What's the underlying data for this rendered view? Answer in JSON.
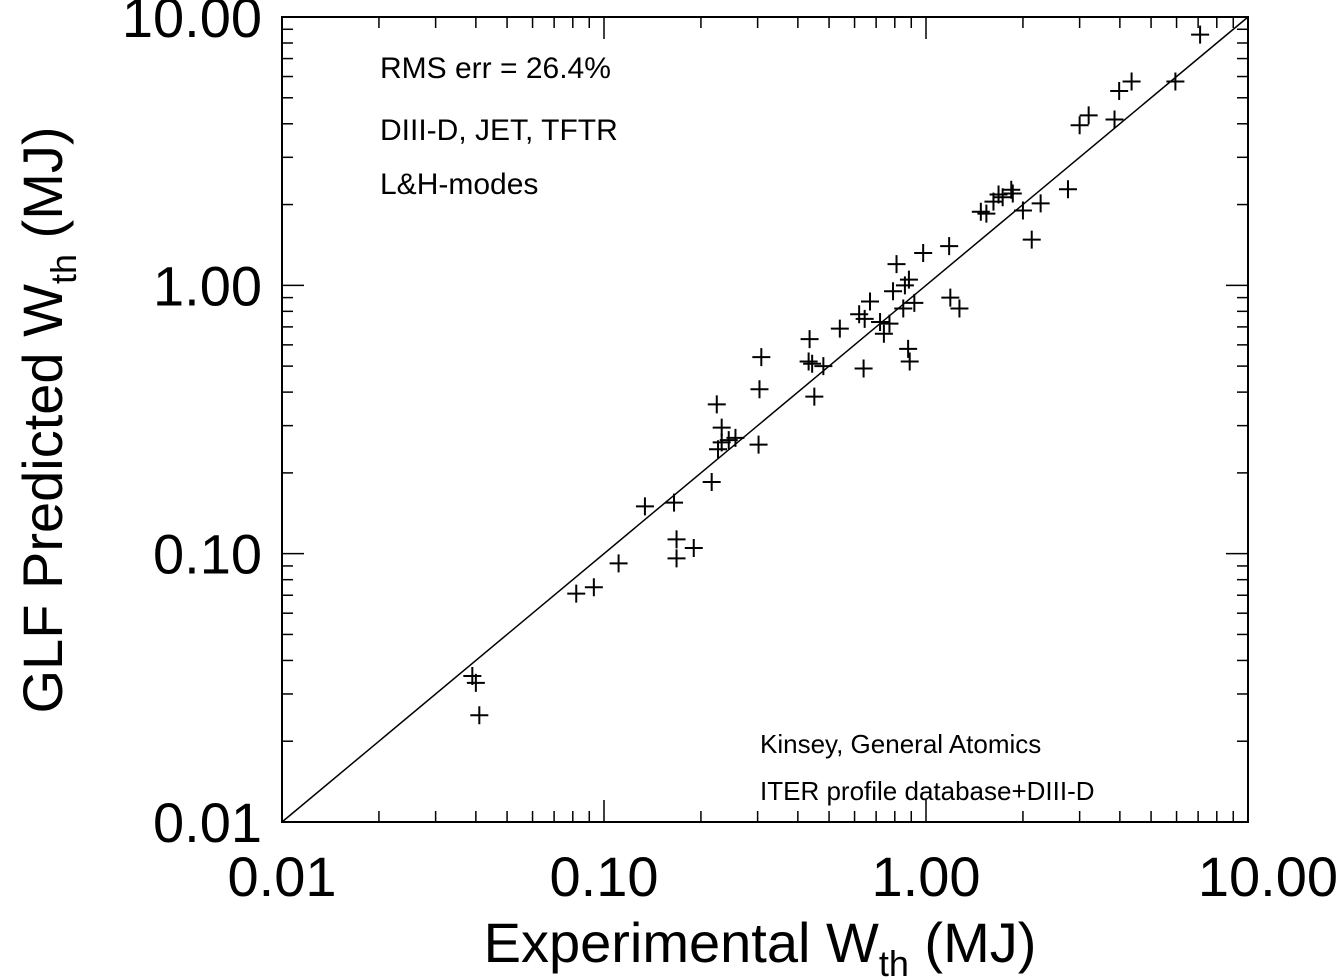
{
  "chart_data": {
    "type": "scatter",
    "title": "",
    "xlabel": {
      "main": "Experimental W",
      "sub": "th",
      "unit": " (MJ)"
    },
    "ylabel": {
      "main": "GLF Predicted W",
      "sub": "th",
      "unit": " (MJ)"
    },
    "x_scale": "log",
    "y_scale": "log",
    "xlim": [
      0.01,
      10
    ],
    "ylim": [
      0.01,
      10
    ],
    "x_ticks": [
      {
        "value": 0.01,
        "label": "0.01"
      },
      {
        "value": 0.1,
        "label": "0.10"
      },
      {
        "value": 1,
        "label": "1.00"
      },
      {
        "value": 10,
        "label": "10.00"
      }
    ],
    "y_ticks": [
      {
        "value": 0.01,
        "label": "0.01"
      },
      {
        "value": 0.1,
        "label": "0.10"
      },
      {
        "value": 1,
        "label": "1.00"
      },
      {
        "value": 10,
        "label": "10.00"
      }
    ],
    "grid": false,
    "reference_line": {
      "type": "identity",
      "from": [
        0.01,
        0.01
      ],
      "to": [
        10,
        10
      ]
    },
    "marker": "+",
    "annotations_top_left": [
      "RMS err = 26.4%",
      "DIII-D, JET, TFTR",
      "L&H-modes"
    ],
    "annotations_bottom_right": [
      "Kinsey, General Atomics",
      "ITER profile database+DIII-D"
    ],
    "points": [
      [
        0.039,
        0.035
      ],
      [
        0.04,
        0.033
      ],
      [
        0.041,
        0.025
      ],
      [
        0.082,
        0.071
      ],
      [
        0.093,
        0.075
      ],
      [
        0.111,
        0.092
      ],
      [
        0.134,
        0.15
      ],
      [
        0.165,
        0.155
      ],
      [
        0.168,
        0.113
      ],
      [
        0.168,
        0.096
      ],
      [
        0.19,
        0.105
      ],
      [
        0.216,
        0.185
      ],
      [
        0.224,
        0.36
      ],
      [
        0.226,
        0.245
      ],
      [
        0.232,
        0.295
      ],
      [
        0.232,
        0.26
      ],
      [
        0.244,
        0.265
      ],
      [
        0.256,
        0.27
      ],
      [
        0.302,
        0.255
      ],
      [
        0.304,
        0.41
      ],
      [
        0.308,
        0.54
      ],
      [
        0.432,
        0.52
      ],
      [
        0.435,
        0.63
      ],
      [
        0.443,
        0.51
      ],
      [
        0.45,
        0.385
      ],
      [
        0.48,
        0.5
      ],
      [
        0.54,
        0.69
      ],
      [
        0.62,
        0.78
      ],
      [
        0.64,
        0.49
      ],
      [
        0.645,
        0.75
      ],
      [
        0.67,
        0.87
      ],
      [
        0.72,
        0.73
      ],
      [
        0.74,
        0.66
      ],
      [
        0.77,
        0.72
      ],
      [
        0.79,
        0.95
      ],
      [
        0.81,
        1.2
      ],
      [
        0.85,
        0.82
      ],
      [
        0.86,
        1.0
      ],
      [
        0.88,
        0.58
      ],
      [
        0.885,
        1.05
      ],
      [
        0.89,
        0.52
      ],
      [
        0.92,
        0.86
      ],
      [
        0.98,
        1.32
      ],
      [
        1.18,
        1.4
      ],
      [
        1.19,
        0.9
      ],
      [
        1.27,
        0.82
      ],
      [
        1.48,
        1.88
      ],
      [
        1.54,
        1.85
      ],
      [
        1.62,
        2.05
      ],
      [
        1.68,
        2.18
      ],
      [
        1.73,
        2.13
      ],
      [
        1.84,
        2.27
      ],
      [
        1.86,
        2.2
      ],
      [
        2.0,
        1.9
      ],
      [
        2.13,
        1.48
      ],
      [
        2.27,
        2.02
      ],
      [
        2.76,
        2.28
      ],
      [
        3.0,
        3.95
      ],
      [
        3.2,
        4.3
      ],
      [
        3.85,
        4.15
      ],
      [
        3.98,
        5.3
      ],
      [
        4.35,
        5.75
      ],
      [
        5.95,
        5.75
      ],
      [
        7.1,
        8.6
      ]
    ]
  }
}
